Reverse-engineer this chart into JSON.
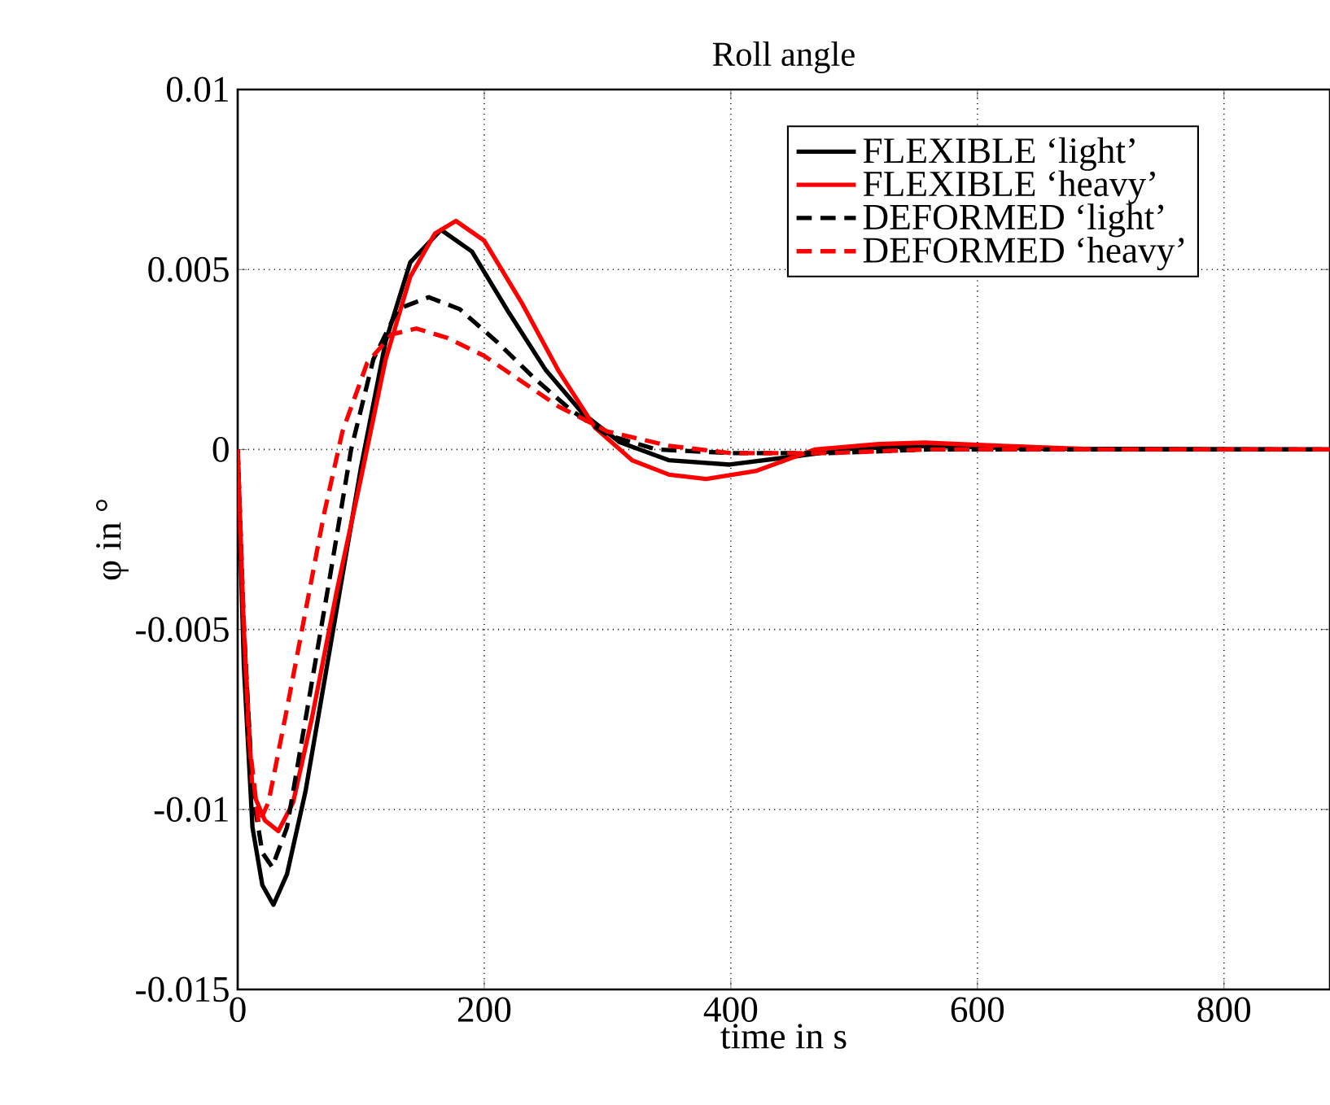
{
  "chart_data": {
    "type": "line",
    "title": "Roll angle",
    "xlabel": "time in s",
    "ylabel": "φ in °",
    "xlim": [
      0,
      886
    ],
    "ylim": [
      -0.015,
      0.01
    ],
    "xticks": [
      0,
      200,
      400,
      600,
      800
    ],
    "yticks": [
      -0.015,
      -0.01,
      -0.005,
      0,
      0.005,
      0.01
    ],
    "grid": true,
    "legend": "top right",
    "series": [
      {
        "name": "FLEXIBLE ‘light’",
        "color": "#000000",
        "line_style": "solid",
        "x": [
          0,
          5,
          12,
          20,
          29,
          40,
          55,
          75,
          100,
          120,
          140,
          165,
          190,
          220,
          250,
          280,
          310,
          350,
          399,
          450,
          500,
          560,
          650,
          886
        ],
        "values": [
          0,
          -0.006,
          -0.0105,
          -0.0121,
          -0.01265,
          -0.0118,
          -0.0095,
          -0.0055,
          -0.0005,
          0.003,
          0.0052,
          0.0061,
          0.0055,
          0.0038,
          0.0022,
          0.001,
          0.0002,
          -0.0003,
          -0.00042,
          -0.0002,
          3e-05,
          0.0001,
          2e-05,
          0
        ]
      },
      {
        "name": "FLEXIBLE ‘heavy’",
        "color": "#ff0000",
        "line_style": "solid",
        "x": [
          0,
          5,
          12,
          22,
          33,
          45,
          60,
          80,
          100,
          120,
          140,
          160,
          177,
          200,
          230,
          260,
          290,
          320,
          350,
          380,
          420,
          468,
          520,
          557,
          620,
          700,
          886
        ],
        "values": [
          0,
          -0.005,
          -0.0095,
          -0.0103,
          -0.0106,
          -0.0098,
          -0.0075,
          -0.004,
          -0.0008,
          0.0025,
          0.0048,
          0.006,
          0.00635,
          0.0058,
          0.0041,
          0.0022,
          0.0006,
          -0.0003,
          -0.0007,
          -0.00082,
          -0.0006,
          0,
          0.00015,
          0.00019,
          0.0001,
          0,
          0
        ]
      },
      {
        "name": "DEFORMED ‘light’",
        "color": "#000000",
        "line_style": "dashed",
        "x": [
          0,
          5,
          12,
          20,
          28,
          40,
          55,
          75,
          92,
          110,
          130,
          155,
          180,
          210,
          240,
          270,
          300,
          340,
          400,
          480,
          560,
          886
        ],
        "values": [
          0,
          -0.005,
          -0.0095,
          -0.0112,
          -0.0116,
          -0.0105,
          -0.0075,
          -0.0035,
          0,
          0.0025,
          0.0039,
          0.00423,
          0.0039,
          0.003,
          0.002,
          0.0011,
          0.0004,
          0,
          -0.0001,
          -0.0001,
          0,
          0
        ]
      },
      {
        "name": "DEFORMED ‘heavy’",
        "color": "#ff0000",
        "line_style": "dashed",
        "x": [
          0,
          4,
          9,
          17,
          25,
          40,
          55,
          70,
          85,
          105,
          125,
          145,
          170,
          200,
          230,
          260,
          300,
          350,
          400,
          480,
          560,
          886
        ],
        "values": [
          0,
          -0.004,
          -0.008,
          -0.0104,
          -0.0098,
          -0.0072,
          -0.0045,
          -0.0018,
          0.0005,
          0.0024,
          0.0032,
          0.00336,
          0.0031,
          0.0026,
          0.0019,
          0.0012,
          0.0005,
          0.0001,
          -0.0001,
          -0.0001,
          0,
          0
        ]
      }
    ]
  }
}
